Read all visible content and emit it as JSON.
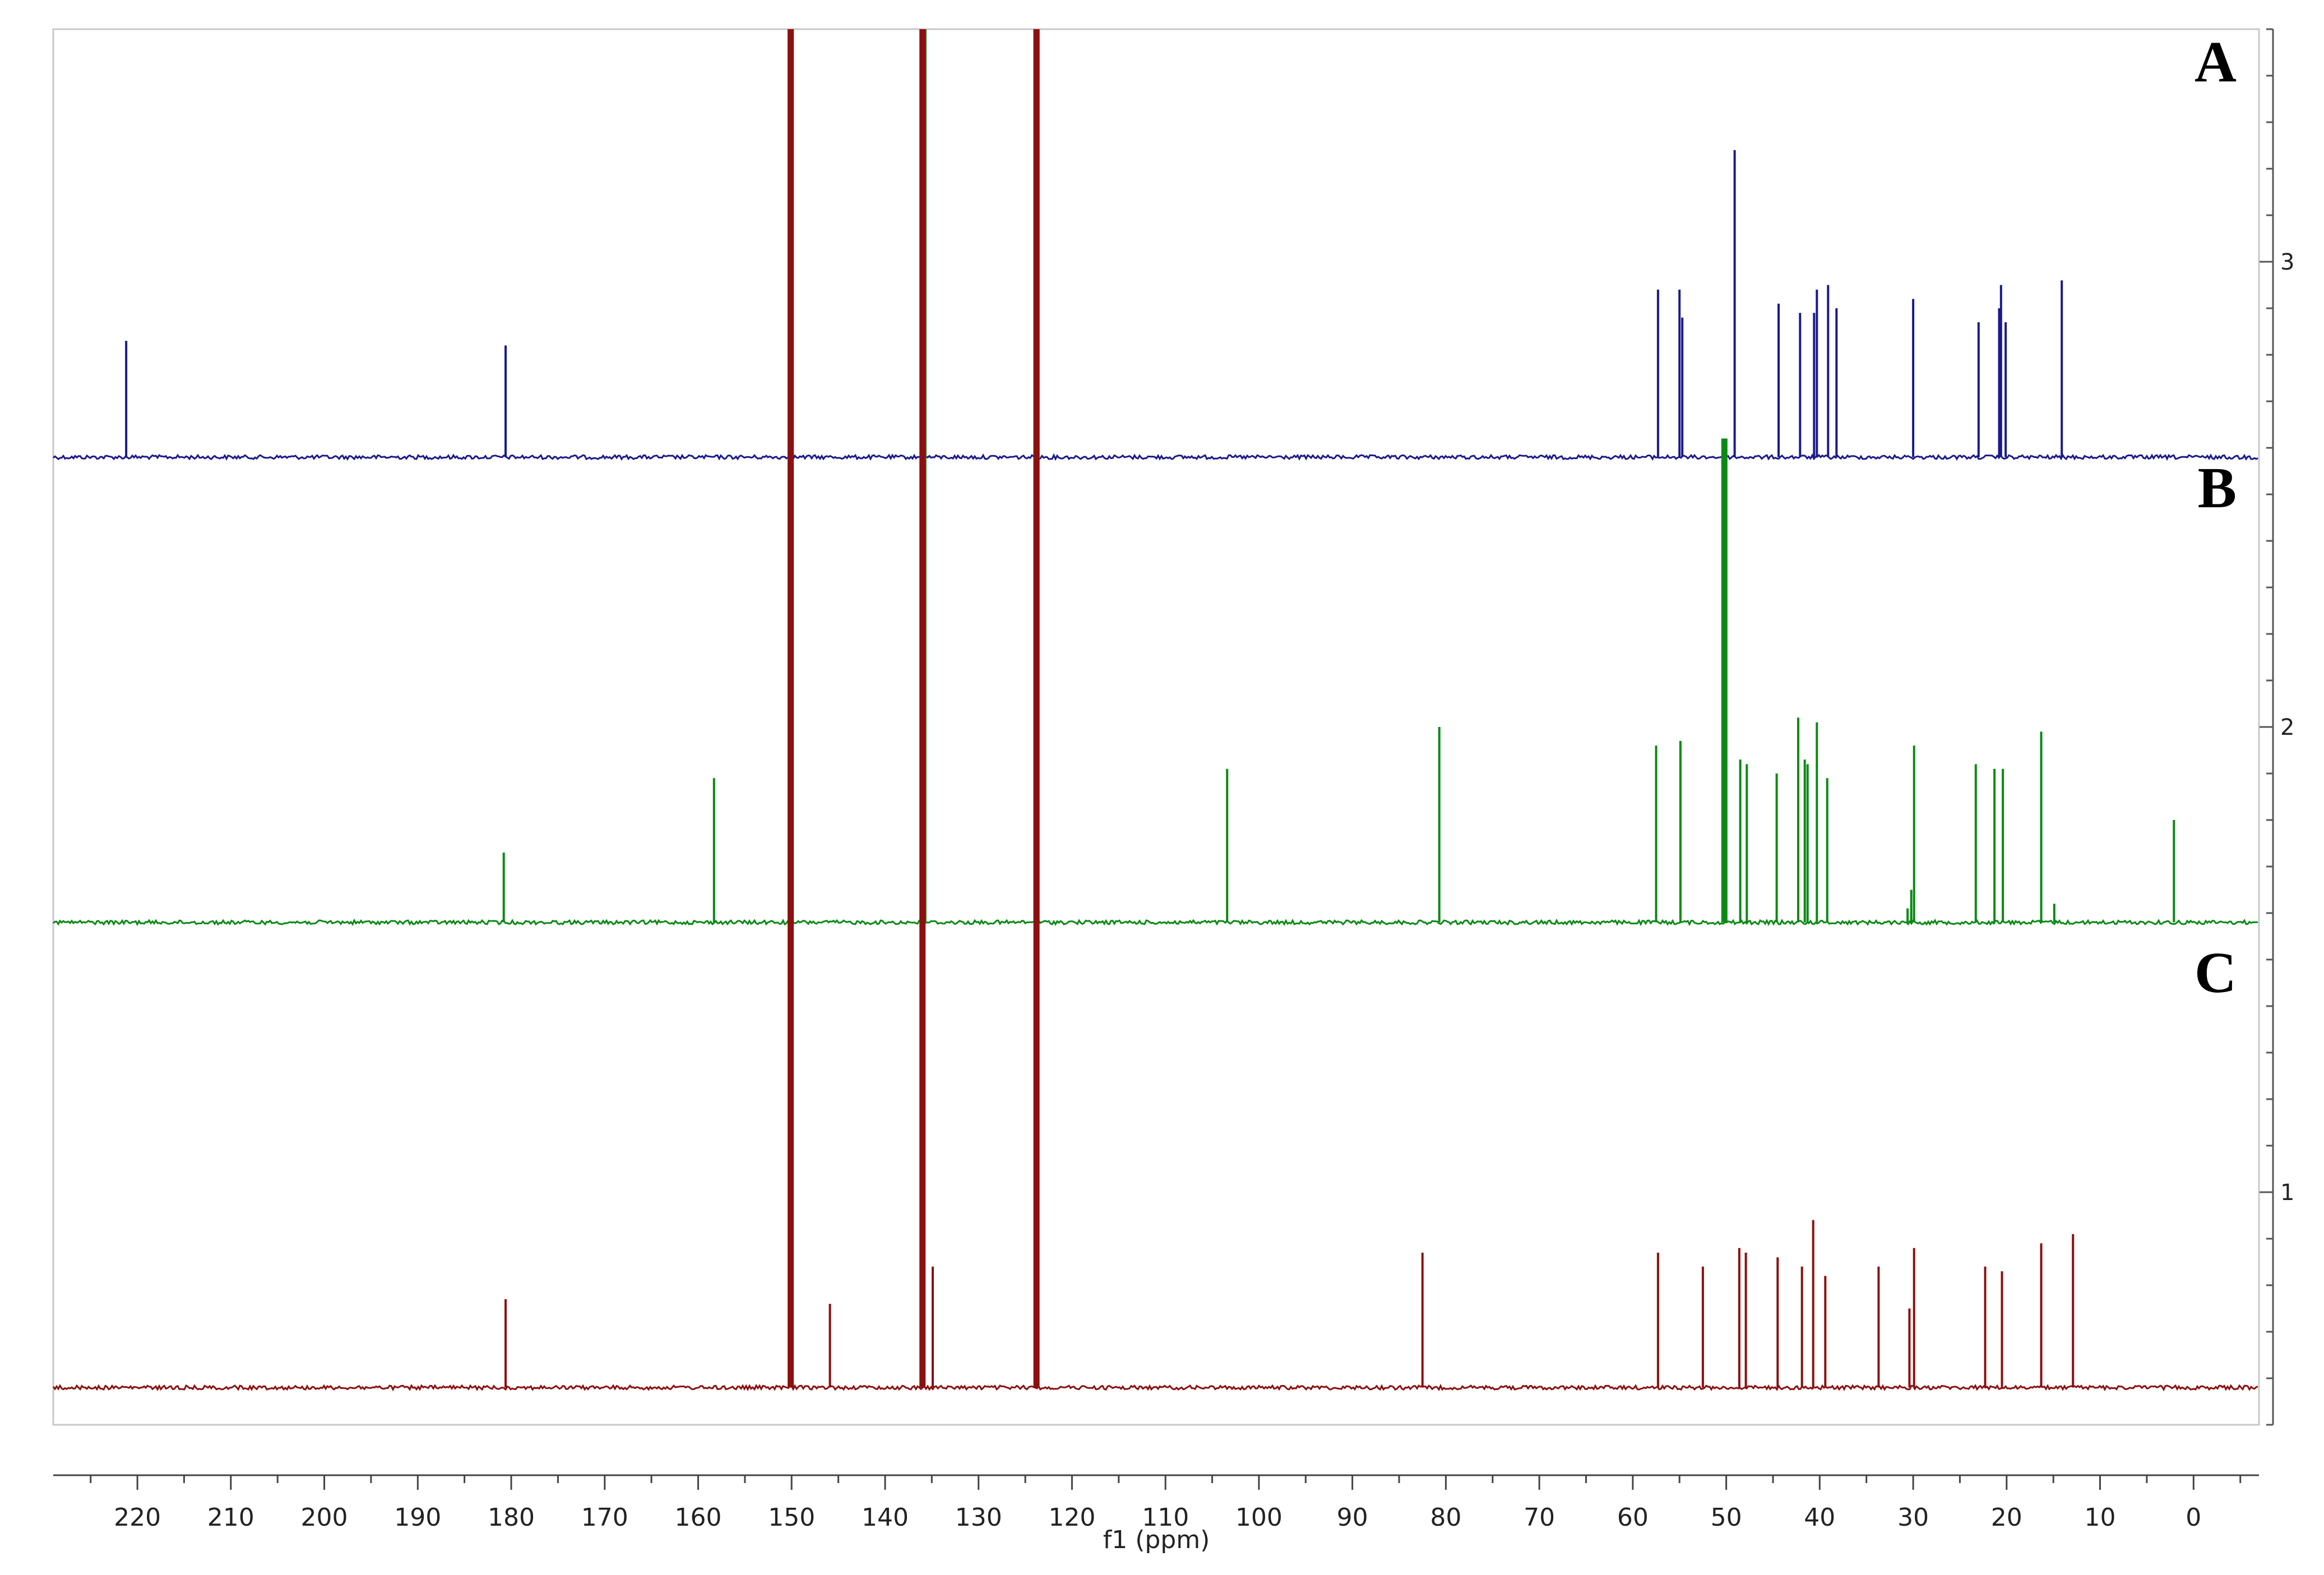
{
  "chart_data": {
    "type": "line",
    "title": "",
    "xlabel": "f1 (ppm)",
    "ylabel": "",
    "xlim": [
      229,
      -7
    ],
    "x_reversed": true,
    "x_ticks": [
      220,
      210,
      200,
      190,
      180,
      170,
      160,
      150,
      140,
      130,
      120,
      110,
      100,
      90,
      80,
      70,
      60,
      50,
      40,
      30,
      20,
      10,
      0
    ],
    "ylim": [
      0.5,
      3.5
    ],
    "y_ticks": [
      1,
      2,
      3
    ],
    "grid": false,
    "legend": "none",
    "series": [
      {
        "name": "A",
        "color": "#1a1a8c",
        "baseline": 2.58,
        "peaks": [
          {
            "ppm": 221.2,
            "height": 0.25
          },
          {
            "ppm": 180.6,
            "height": 0.24
          },
          {
            "ppm": 150.1,
            "height": 1.5
          },
          {
            "ppm": 135.9,
            "height": 1.5
          },
          {
            "ppm": 123.8,
            "height": 1.5
          },
          {
            "ppm": 57.3,
            "height": 0.36
          },
          {
            "ppm": 55.0,
            "height": 0.36
          },
          {
            "ppm": 54.7,
            "height": 0.3
          },
          {
            "ppm": 49.1,
            "height": 0.66
          },
          {
            "ppm": 44.4,
            "height": 0.33
          },
          {
            "ppm": 42.1,
            "height": 0.31
          },
          {
            "ppm": 40.6,
            "height": 0.31
          },
          {
            "ppm": 40.3,
            "height": 0.36
          },
          {
            "ppm": 39.1,
            "height": 0.37
          },
          {
            "ppm": 38.2,
            "height": 0.32
          },
          {
            "ppm": 30.0,
            "height": 0.34
          },
          {
            "ppm": 23.0,
            "height": 0.29
          },
          {
            "ppm": 20.8,
            "height": 0.32
          },
          {
            "ppm": 20.6,
            "height": 0.37
          },
          {
            "ppm": 20.1,
            "height": 0.29
          },
          {
            "ppm": 14.1,
            "height": 0.38
          }
        ]
      },
      {
        "name": "B",
        "color": "#0a8a14",
        "baseline": 1.58,
        "peaks": [
          {
            "ppm": 180.8,
            "height": 0.15
          },
          {
            "ppm": 158.3,
            "height": 0.31
          },
          {
            "ppm": 150.1,
            "height": 2.6
          },
          {
            "ppm": 135.9,
            "height": 2.6
          },
          {
            "ppm": 123.8,
            "height": 2.6
          },
          {
            "ppm": 103.4,
            "height": 0.33
          },
          {
            "ppm": 80.7,
            "height": 0.42
          },
          {
            "ppm": 57.5,
            "height": 0.38
          },
          {
            "ppm": 54.9,
            "height": 0.39
          },
          {
            "ppm": 50.2,
            "height": 1.04
          },
          {
            "ppm": 48.5,
            "height": 0.35
          },
          {
            "ppm": 47.8,
            "height": 0.34
          },
          {
            "ppm": 44.6,
            "height": 0.32
          },
          {
            "ppm": 42.3,
            "height": 0.44
          },
          {
            "ppm": 41.6,
            "height": 0.35
          },
          {
            "ppm": 41.3,
            "height": 0.34
          },
          {
            "ppm": 40.3,
            "height": 0.43
          },
          {
            "ppm": 39.2,
            "height": 0.31
          },
          {
            "ppm": 30.6,
            "height": 0.03
          },
          {
            "ppm": 30.2,
            "height": 0.07
          },
          {
            "ppm": 29.9,
            "height": 0.38
          },
          {
            "ppm": 23.3,
            "height": 0.34
          },
          {
            "ppm": 21.3,
            "height": 0.33
          },
          {
            "ppm": 20.4,
            "height": 0.33
          },
          {
            "ppm": 16.3,
            "height": 0.41
          },
          {
            "ppm": 14.9,
            "height": 0.04
          },
          {
            "ppm": 2.1,
            "height": 0.22
          }
        ]
      },
      {
        "name": "C",
        "color": "#8c1010",
        "baseline": 0.58,
        "peaks": [
          {
            "ppm": 180.6,
            "height": 0.19
          },
          {
            "ppm": 150.1,
            "height": 3.1
          },
          {
            "ppm": 145.9,
            "height": 0.18
          },
          {
            "ppm": 136.0,
            "height": 3.1
          },
          {
            "ppm": 134.9,
            "height": 0.26
          },
          {
            "ppm": 123.8,
            "height": 3.1
          },
          {
            "ppm": 82.5,
            "height": 0.29
          },
          {
            "ppm": 57.3,
            "height": 0.29
          },
          {
            "ppm": 52.5,
            "height": 0.26
          },
          {
            "ppm": 48.6,
            "height": 0.3
          },
          {
            "ppm": 47.9,
            "height": 0.29
          },
          {
            "ppm": 44.5,
            "height": 0.28
          },
          {
            "ppm": 41.9,
            "height": 0.26
          },
          {
            "ppm": 40.7,
            "height": 0.36
          },
          {
            "ppm": 39.4,
            "height": 0.24
          },
          {
            "ppm": 33.7,
            "height": 0.26
          },
          {
            "ppm": 30.4,
            "height": 0.17
          },
          {
            "ppm": 29.9,
            "height": 0.3
          },
          {
            "ppm": 22.3,
            "height": 0.26
          },
          {
            "ppm": 20.5,
            "height": 0.25
          },
          {
            "ppm": 16.3,
            "height": 0.31
          },
          {
            "ppm": 12.9,
            "height": 0.33
          }
        ]
      }
    ]
  }
}
